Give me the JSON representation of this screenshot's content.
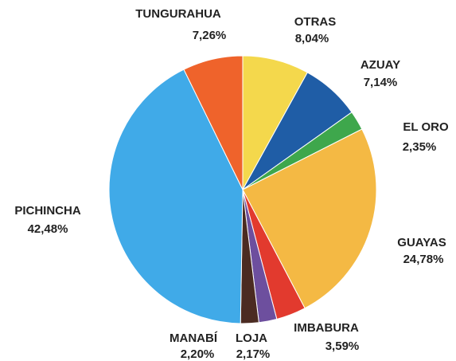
{
  "chart_data": {
    "type": "pie",
    "categories": [
      "OTRAS",
      "AZUAY",
      "EL ORO",
      "GUAYAS",
      "IMBABURA",
      "LOJA",
      "MANABÍ",
      "PICHINCHA",
      "TUNGURAHUA"
    ],
    "values": [
      8.04,
      7.14,
      2.35,
      24.78,
      3.59,
      2.17,
      2.2,
      42.48,
      7.26
    ],
    "value_labels": [
      "8,04%",
      "7,14%",
      "2,35%",
      "24,78%",
      "3,59%",
      "2,17%",
      "2,20%",
      "42,48%",
      "7,26%"
    ],
    "colors": [
      "#f4d84c",
      "#1f5da6",
      "#3ea74c",
      "#f4b944",
      "#e23a2e",
      "#6d4f9e",
      "#4b2b22",
      "#40aae8",
      "#ef632b"
    ]
  }
}
